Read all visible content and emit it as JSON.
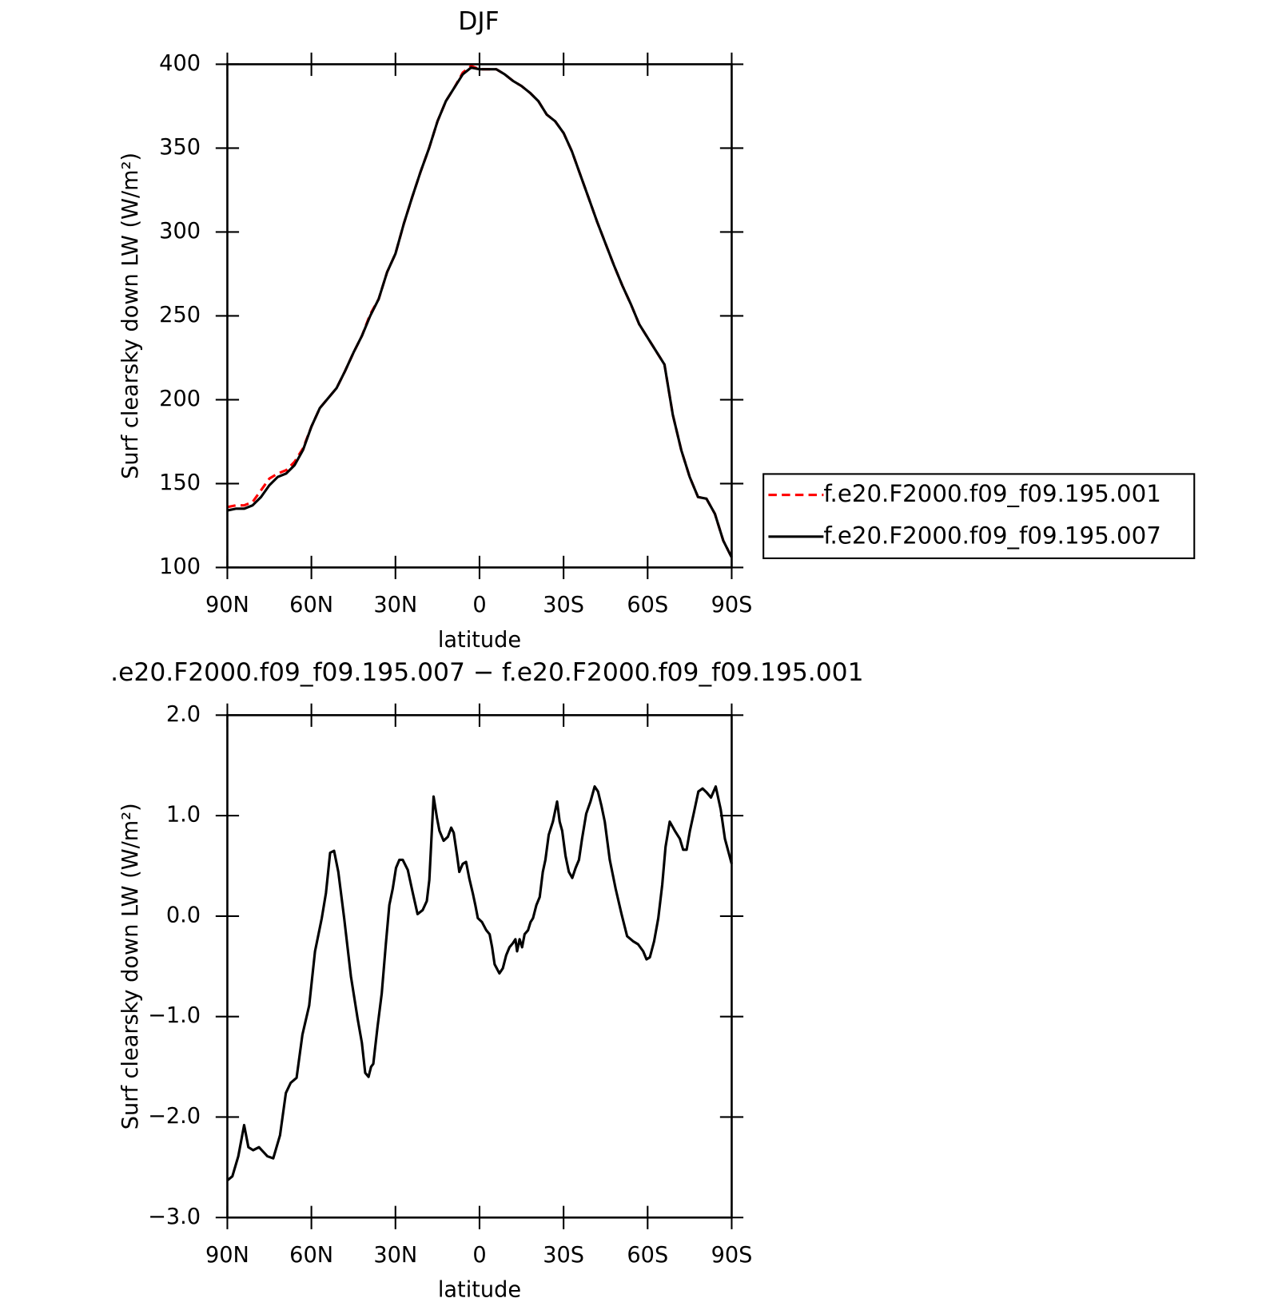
{
  "chart_data": [
    {
      "type": "line",
      "title": "DJF",
      "xlabel": "latitude",
      "ylabel": "Surf clearsky down LW (W/m²)",
      "x": [
        90,
        87,
        84,
        81,
        78,
        75,
        72,
        69,
        66,
        63,
        60,
        57,
        54,
        51,
        48,
        45,
        42,
        39,
        36,
        33,
        30,
        27,
        24,
        21,
        18,
        15,
        12,
        9,
        6,
        3,
        0,
        -3,
        -6,
        -9,
        -12,
        -15,
        -18,
        -21,
        -24,
        -27,
        -30,
        -33,
        -36,
        -39,
        -42,
        -45,
        -48,
        -51,
        -54,
        -57,
        -60,
        -63,
        -66,
        -69,
        -72,
        -75,
        -78,
        -81,
        -84,
        -87,
        -90
      ],
      "series": [
        {
          "name": "f.e20.F2000.f09_f09.195.001",
          "color": "#ff0000",
          "linestyle": "dashed",
          "values": [
            136,
            137,
            137,
            139,
            146,
            153,
            156,
            158,
            163,
            171,
            184,
            195,
            201,
            207,
            217,
            228,
            238,
            251,
            260,
            276,
            287,
            305,
            321,
            336,
            350,
            366,
            378,
            386,
            395,
            399,
            397,
            397,
            397,
            394,
            390,
            387,
            383,
            378,
            370,
            366,
            359,
            348,
            334,
            320,
            306,
            293,
            280,
            268,
            257,
            245,
            237,
            229,
            221,
            191,
            170,
            154,
            142,
            141,
            132,
            116,
            106
          ]
        },
        {
          "name": "f.e20.F2000.f09_f09.195.007",
          "color": "#000000",
          "linestyle": "solid",
          "values": [
            134,
            135,
            135,
            137,
            142,
            149,
            154,
            156,
            161,
            170,
            184,
            195,
            201,
            207,
            217,
            228,
            238,
            250,
            260,
            276,
            287,
            305,
            321,
            336,
            350,
            366,
            378,
            386,
            394,
            398,
            397,
            397,
            397,
            394,
            390,
            387,
            383,
            378,
            370,
            366,
            359,
            348,
            334,
            320,
            306,
            293,
            280,
            268,
            257,
            245,
            237,
            229,
            221,
            191,
            170,
            154,
            142,
            141,
            132,
            116,
            106
          ]
        }
      ],
      "xlim": [
        90,
        -90
      ],
      "xticks": [
        {
          "value": 90,
          "label": "90N"
        },
        {
          "value": 60,
          "label": "60N"
        },
        {
          "value": 30,
          "label": "30N"
        },
        0,
        {
          "value": -30,
          "label": "30S"
        },
        {
          "value": -60,
          "label": "60S"
        },
        {
          "value": -90,
          "label": "90S"
        }
      ],
      "ylim": [
        100,
        400
      ],
      "yticks": [
        100,
        150,
        200,
        250,
        300,
        350,
        400
      ],
      "legend": "right"
    },
    {
      "type": "line",
      "title": ".e20.F2000.f09_f09.195.007 − f.e20.F2000.f09_f09.195.001",
      "xlabel": "latitude",
      "ylabel": "Surf clearsky down LW (W/m²)",
      "x": [
        90,
        88.2,
        86.1,
        84,
        82.5,
        80.8,
        78.7,
        75.7,
        73.6,
        71.2,
        69.1,
        67.4,
        65.3,
        63.2,
        60.8,
        58.7,
        56.3,
        54.8,
        53.3,
        51.9,
        50.4,
        48.3,
        45.9,
        43.5,
        42,
        40.8,
        39.6,
        38.7,
        37.9,
        36.4,
        34.9,
        33.4,
        32.2,
        31,
        29.8,
        28.6,
        27.4,
        25.6,
        23.8,
        22.1,
        20.3,
        18.8,
        17.9,
        16.4,
        15.2,
        14.3,
        12.8,
        11.3,
        10.1,
        9.2,
        8,
        7.2,
        6,
        4.8,
        3.6,
        2.4,
        1.5,
        0.6,
        -0.9,
        -2.4,
        -3.6,
        -4.5,
        -5.4,
        -7.1,
        -8.3,
        -9.5,
        -10.7,
        -11.9,
        -12.8,
        -13.4,
        -14.3,
        -15.2,
        -16.1,
        -17.3,
        -18.2,
        -19.1,
        -20.3,
        -21.5,
        -22.6,
        -23.5,
        -24.7,
        -26.2,
        -27.7,
        -28.6,
        -29.5,
        -30.7,
        -31.9,
        -33.1,
        -34.3,
        -35.5,
        -36.6,
        -38.1,
        -39.6,
        -41.1,
        -42.3,
        -43.5,
        -44.7,
        -46.5,
        -48.6,
        -50.7,
        -52.7,
        -54.8,
        -56.6,
        -58.4,
        -59.6,
        -60.8,
        -62.3,
        -63.8,
        -65.2,
        -66.4,
        -67.9,
        -69.7,
        -71.5,
        -72.7,
        -73.9,
        -75.1,
        -76.6,
        -78.1,
        -79.6,
        -81.1,
        -82.6,
        -84.3,
        -86.1,
        -87.6,
        -90
      ],
      "series": [
        {
          "color": "#000000",
          "linestyle": "solid",
          "values": [
            -2.63,
            -2.59,
            -2.39,
            -2.08,
            -2.3,
            -2.33,
            -2.3,
            -2.39,
            -2.41,
            -2.18,
            -1.76,
            -1.66,
            -1.61,
            -1.18,
            -0.89,
            -0.35,
            -0.02,
            0.23,
            0.63,
            0.65,
            0.44,
            -0.02,
            -0.6,
            -1.02,
            -1.26,
            -1.56,
            -1.6,
            -1.5,
            -1.47,
            -1.1,
            -0.77,
            -0.27,
            0.11,
            0.27,
            0.48,
            0.56,
            0.56,
            0.46,
            0.23,
            0.02,
            0.06,
            0.15,
            0.36,
            1.19,
            0.98,
            0.85,
            0.75,
            0.79,
            0.88,
            0.83,
            0.6,
            0.44,
            0.52,
            0.54,
            0.37,
            0.23,
            0.11,
            -0.02,
            -0.06,
            -0.14,
            -0.18,
            -0.31,
            -0.48,
            -0.57,
            -0.52,
            -0.39,
            -0.31,
            -0.27,
            -0.23,
            -0.35,
            -0.23,
            -0.31,
            -0.18,
            -0.14,
            -0.06,
            -0.02,
            0.11,
            0.19,
            0.44,
            0.56,
            0.81,
            0.94,
            1.14,
            0.94,
            0.85,
            0.6,
            0.44,
            0.38,
            0.48,
            0.56,
            0.77,
            1.02,
            1.14,
            1.29,
            1.24,
            1.1,
            0.94,
            0.56,
            0.27,
            0.02,
            -0.2,
            -0.25,
            -0.28,
            -0.35,
            -0.43,
            -0.41,
            -0.25,
            -0.02,
            0.31,
            0.69,
            0.94,
            0.85,
            0.77,
            0.66,
            0.66,
            0.85,
            1.04,
            1.24,
            1.27,
            1.23,
            1.18,
            1.29,
            1.06,
            0.77,
            0.52
          ]
        }
      ],
      "xlim": [
        90,
        -90
      ],
      "xticks": [
        {
          "value": 90,
          "label": "90N"
        },
        {
          "value": 60,
          "label": "60N"
        },
        {
          "value": 30,
          "label": "30N"
        },
        0,
        {
          "value": -30,
          "label": "30S"
        },
        {
          "value": -60,
          "label": "60S"
        },
        {
          "value": -90,
          "label": "90S"
        }
      ],
      "ylim": [
        -3,
        2
      ],
      "yticks": [
        {
          "value": -3,
          "label": "−3.0"
        },
        {
          "value": -2,
          "label": "−2.0"
        },
        {
          "value": -1,
          "label": "−1.0"
        },
        {
          "value": 0,
          "label": "0.0"
        },
        {
          "value": 1,
          "label": "1.0"
        },
        {
          "value": 2,
          "label": "2.0"
        }
      ]
    }
  ]
}
